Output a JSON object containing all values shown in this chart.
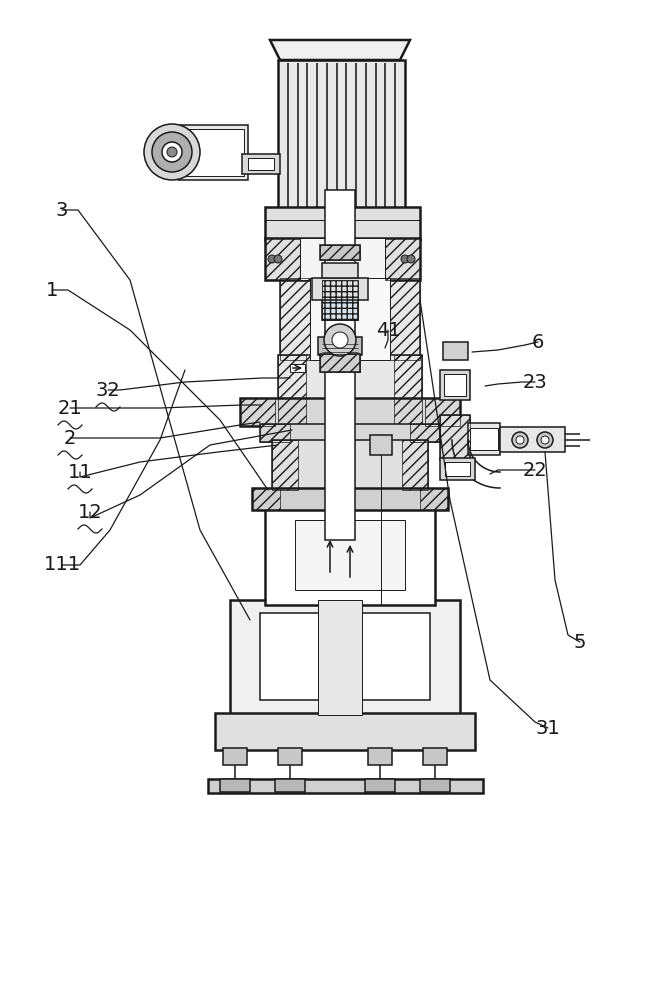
{
  "bg_color": "#ffffff",
  "line_color": "#1a1a1a",
  "lw_thin": 0.7,
  "lw_med": 1.1,
  "lw_thick": 1.8,
  "lw_vthick": 2.5,
  "figsize": [
    6.6,
    10.0
  ],
  "dpi": 100,
  "labels": [
    [
      "111",
      62,
      435
    ],
    [
      "12",
      90,
      488
    ],
    [
      "11",
      80,
      528
    ],
    [
      "2",
      70,
      562
    ],
    [
      "21",
      70,
      592
    ],
    [
      "32",
      108,
      610
    ],
    [
      "1",
      52,
      710
    ],
    [
      "3",
      62,
      790
    ],
    [
      "31",
      548,
      272
    ],
    [
      "5",
      580,
      358
    ],
    [
      "22",
      535,
      530
    ],
    [
      "23",
      535,
      618
    ],
    [
      "6",
      538,
      658
    ],
    [
      "41",
      388,
      670
    ]
  ],
  "leader_lines": [
    [
      "111",
      62,
      435,
      175,
      580
    ],
    [
      "12",
      90,
      488,
      296,
      585
    ],
    [
      "11",
      80,
      528,
      296,
      558
    ],
    [
      "2",
      70,
      562,
      260,
      575
    ],
    [
      "21",
      70,
      592,
      260,
      598
    ],
    [
      "32",
      108,
      610,
      290,
      620
    ],
    [
      "1",
      52,
      710,
      262,
      490
    ],
    [
      "3",
      62,
      790,
      245,
      360
    ],
    [
      "31",
      548,
      272,
      415,
      715
    ],
    [
      "5",
      580,
      358,
      545,
      570
    ],
    [
      "22",
      535,
      530,
      498,
      528
    ],
    [
      "23",
      535,
      618,
      493,
      618
    ],
    [
      "6",
      538,
      658,
      460,
      652
    ],
    [
      "41",
      388,
      670,
      392,
      652
    ]
  ]
}
